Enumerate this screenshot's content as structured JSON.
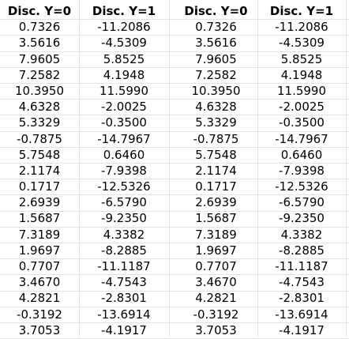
{
  "tables": [
    {
      "headers": [
        "Disc. Y=0",
        "Disc. Y=1"
      ],
      "rows": [
        [
          "0.7326",
          "-11.2086"
        ],
        [
          "3.5616",
          "-4.5309"
        ],
        [
          "7.9605",
          "5.8525"
        ],
        [
          "7.2582",
          "4.1948"
        ],
        [
          "10.3950",
          "11.5990"
        ],
        [
          "4.6328",
          "-2.0025"
        ],
        [
          "5.3329",
          "-0.3500"
        ],
        [
          "-0.7875",
          "-14.7967"
        ],
        [
          "5.7548",
          "0.6460"
        ],
        [
          "2.1174",
          "-7.9398"
        ],
        [
          "0.1717",
          "-12.5326"
        ],
        [
          "2.6939",
          "-6.5790"
        ],
        [
          "1.5687",
          "-9.2350"
        ],
        [
          "7.3189",
          "4.3382"
        ],
        [
          "1.9697",
          "-8.2885"
        ],
        [
          "0.7707",
          "-11.1187"
        ],
        [
          "3.4670",
          "-4.7543"
        ],
        [
          "4.2821",
          "-2.8301"
        ],
        [
          "-0.3192",
          "-13.6914"
        ],
        [
          "3.7053",
          "-4.1917"
        ]
      ]
    },
    {
      "headers": [
        "Disc. Y=0",
        "Disc. Y=1"
      ],
      "rows": [
        [
          "0.7326",
          "-11.2086"
        ],
        [
          "3.5616",
          "-4.5309"
        ],
        [
          "7.9605",
          "5.8525"
        ],
        [
          "7.2582",
          "4.1948"
        ],
        [
          "10.3950",
          "11.5990"
        ],
        [
          "4.6328",
          "-2.0025"
        ],
        [
          "5.3329",
          "-0.3500"
        ],
        [
          "-0.7875",
          "-14.7967"
        ],
        [
          "5.7548",
          "0.6460"
        ],
        [
          "2.1174",
          "-7.9398"
        ],
        [
          "0.1717",
          "-12.5326"
        ],
        [
          "2.6939",
          "-6.5790"
        ],
        [
          "1.5687",
          "-9.2350"
        ],
        [
          "7.3189",
          "4.3382"
        ],
        [
          "1.9697",
          "-8.2885"
        ],
        [
          "0.7707",
          "-11.1187"
        ],
        [
          "3.4670",
          "-4.7543"
        ],
        [
          "4.2821",
          "-2.8301"
        ],
        [
          "-0.3192",
          "-13.6914"
        ],
        [
          "3.7053",
          "-4.1917"
        ]
      ]
    }
  ]
}
